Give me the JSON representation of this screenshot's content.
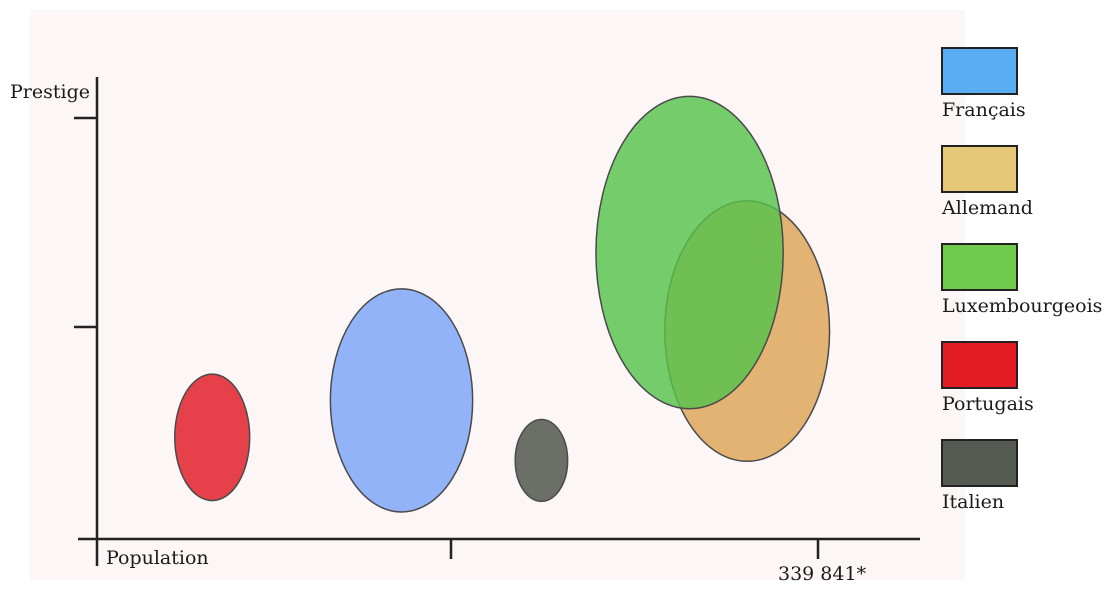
{
  "chart_data": {
    "type": "bubble",
    "title": "",
    "xlabel": "Population",
    "ylabel": "Prestige",
    "x_tick_labels": [
      "",
      "339 841*"
    ],
    "y_ticks": 2,
    "grid": false,
    "legend_position": "right",
    "series": [
      {
        "name": "Français",
        "color": "#5aacf3",
        "fill": "#7aa4f6",
        "x": 0.37,
        "y": 0.3,
        "rx": 0.19,
        "ry": 0.3
      },
      {
        "name": "Allemand",
        "color": "#e6c978",
        "fill": "#dda356",
        "x": 0.79,
        "y": 0.45,
        "rx": 0.22,
        "ry": 0.35
      },
      {
        "name": "Luxembourgeois",
        "color": "#6fca4e",
        "fill": "#55c24c",
        "x": 0.72,
        "y": 0.62,
        "rx": 0.25,
        "ry": 0.42
      },
      {
        "name": "Portugais",
        "color": "#e31b23",
        "fill": "#e01823",
        "x": 0.14,
        "y": 0.22,
        "rx": 0.1,
        "ry": 0.17
      },
      {
        "name": "Italien",
        "color": "#555b52",
        "fill": "#4b5147",
        "x": 0.54,
        "y": 0.17,
        "rx": 0.07,
        "ry": 0.11
      }
    ],
    "draw_order": [
      "Portugais",
      "Français",
      "Allemand",
      "Luxembourgeois",
      "Italien"
    ]
  }
}
